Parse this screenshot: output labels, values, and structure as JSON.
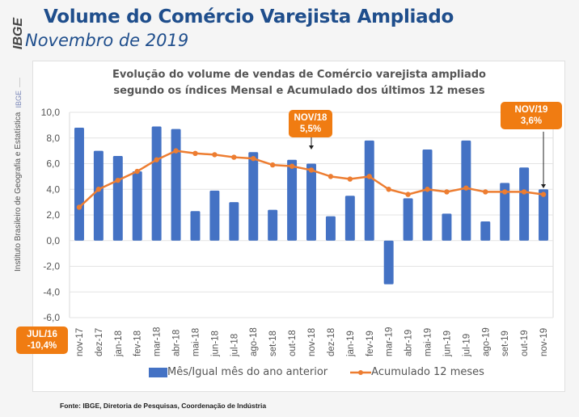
{
  "header": {
    "title": "Volume do Comércio Varejista Ampliado",
    "subtitle": "Novembro de 2019",
    "logo_text": "IBGE",
    "side_label_short": "IBGE",
    "side_label_long": "Instituto Brasileiro de Geografia e Estatística"
  },
  "callouts": [
    {
      "label": "NOV/18",
      "value": "5,5%"
    },
    {
      "label": "NOV/19",
      "value": "3,6%"
    },
    {
      "label": "JUL/16",
      "value": "-10,4%"
    }
  ],
  "source": "Fonte: IBGE, Diretoria de Pesquisas, Coordenação de Indústria",
  "colors": {
    "bar": "#4472c4",
    "line": "#ed7d31",
    "callout": "#f07c12",
    "title": "#1f4e8c"
  },
  "chart_data": {
    "type": "bar",
    "title_line1": "Evolução do volume de vendas de Comércio varejista ampliado",
    "title_line2": "segundo os índices Mensal e Acumulado dos últimos 12 meses",
    "xlabel": "",
    "ylabel": "",
    "ylim": [
      -6,
      10
    ],
    "yticks": [
      10,
      8,
      6,
      4,
      2,
      0,
      -2,
      -4,
      -6
    ],
    "ytick_labels": [
      "10,0",
      "8,0",
      "6,0",
      "4,0",
      "2,0",
      "0,0",
      "-2,0",
      "-4,0",
      "-6,0"
    ],
    "grid": true,
    "legend_position": "bottom",
    "categories": [
      "nov-17",
      "dez-17",
      "jan-18",
      "fev-18",
      "mar-18",
      "abr-18",
      "mai-18",
      "jun-18",
      "jul-18",
      "ago-18",
      "set-18",
      "out-18",
      "nov-18",
      "dez-18",
      "jan-19",
      "fev-19",
      "mar-19",
      "abr-19",
      "mai-19",
      "jun-19",
      "jul-19",
      "ago-19",
      "set-19",
      "out-19",
      "nov-19"
    ],
    "series": [
      {
        "name": "Mês/Igual mês do ano anterior",
        "type": "bar",
        "values": [
          8.8,
          7.0,
          6.6,
          5.4,
          8.9,
          8.7,
          2.3,
          3.9,
          3.0,
          6.9,
          2.4,
          6.3,
          6.0,
          1.9,
          3.5,
          7.8,
          -3.4,
          3.3,
          7.1,
          2.1,
          7.8,
          1.5,
          4.5,
          5.7,
          4.0
        ]
      },
      {
        "name": "Acumulado 12 meses",
        "type": "line",
        "values": [
          2.6,
          4.0,
          4.7,
          5.4,
          6.3,
          7.0,
          6.8,
          6.7,
          6.5,
          6.4,
          5.9,
          5.8,
          5.5,
          5.0,
          4.8,
          5.0,
          4.0,
          3.6,
          4.0,
          3.8,
          4.1,
          3.8,
          3.8,
          3.8,
          3.6
        ]
      }
    ]
  }
}
